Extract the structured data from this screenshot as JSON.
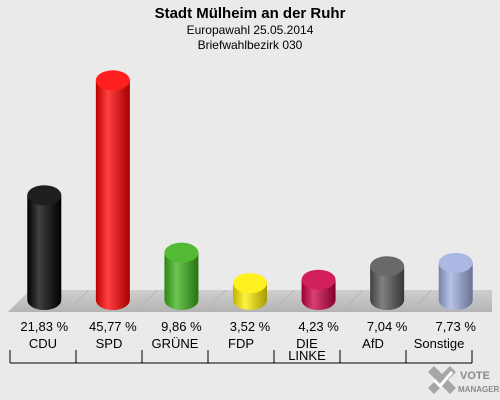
{
  "chart_data": {
    "type": "bar",
    "title": "Stadt Mülheim an der Ruhr",
    "subtitle_1": "Europawahl 25.05.2014",
    "subtitle_2": "Briefwahlbezirk 030",
    "categories": [
      "CDU",
      "SPD",
      "GRÜNE",
      "FDP",
      "DIE LINKE",
      "AfD",
      "Sonstige"
    ],
    "category_lines": [
      [
        "CDU"
      ],
      [
        "SPD"
      ],
      [
        "GRÜNE"
      ],
      [
        "FDP"
      ],
      [
        "DIE",
        "LINKE"
      ],
      [
        "AfD"
      ],
      [
        "Sonstige"
      ]
    ],
    "values": [
      21.83,
      45.77,
      9.86,
      3.52,
      4.23,
      7.04,
      7.73
    ],
    "value_labels": [
      "21,83 %",
      "45,77 %",
      "9,86 %",
      "3,52 %",
      "4,23 %",
      "7,04 %",
      "7,73 %"
    ],
    "colors": [
      "#000000",
      "#ff0000",
      "#3cb11a",
      "#ffee00",
      "#cc0044",
      "#555555",
      "#a0aee0"
    ],
    "ylim": [
      0,
      50
    ],
    "grid": false,
    "legend": "none"
  },
  "logo": {
    "line1": "VOTE",
    "line2": "MANAGER"
  }
}
